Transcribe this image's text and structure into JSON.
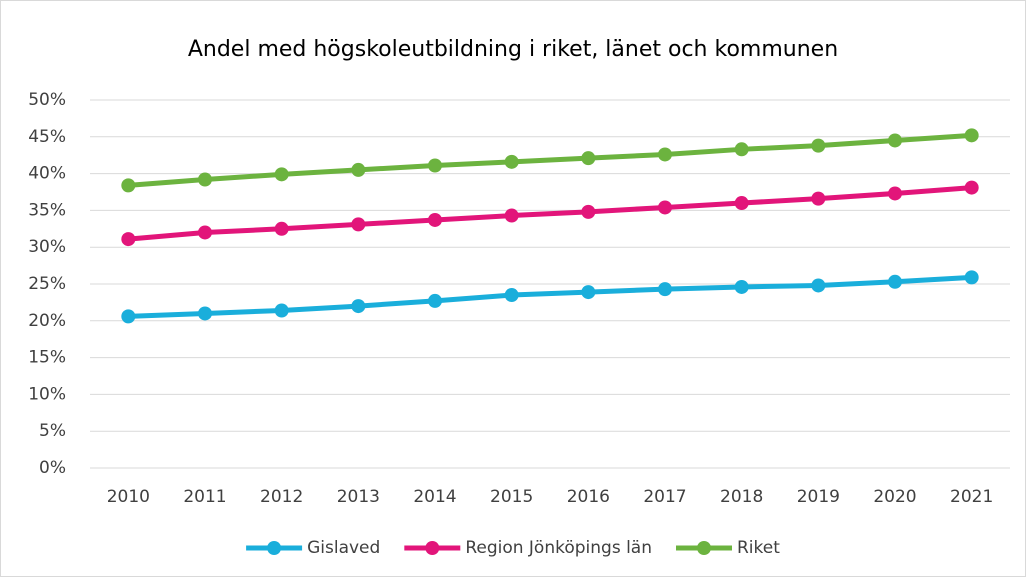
{
  "chart_data": {
    "type": "line",
    "title": "Andel med högskoleutbildning i riket, länet och kommunen",
    "categories": [
      "2010",
      "2011",
      "2012",
      "2013",
      "2014",
      "2015",
      "2016",
      "2017",
      "2018",
      "2019",
      "2020",
      "2021"
    ],
    "series": [
      {
        "name": "Gislaved",
        "color": "#1aaedb",
        "values": [
          20.6,
          21.0,
          21.4,
          22.0,
          22.7,
          23.5,
          23.9,
          24.3,
          24.6,
          24.8,
          25.3,
          25.9
        ]
      },
      {
        "name": "Region Jönköpings län",
        "color": "#e2157a",
        "values": [
          31.1,
          32.0,
          32.5,
          33.1,
          33.7,
          34.3,
          34.8,
          35.4,
          36.0,
          36.6,
          37.3,
          38.1
        ]
      },
      {
        "name": "Riket",
        "color": "#6cb33f",
        "values": [
          38.4,
          39.2,
          39.9,
          40.5,
          41.1,
          41.6,
          42.1,
          42.6,
          43.3,
          43.8,
          44.5,
          45.2
        ]
      }
    ],
    "ylim": [
      0,
      50
    ],
    "yticks": [
      {
        "value": 0,
        "label": "0%"
      },
      {
        "value": 5,
        "label": "5%"
      },
      {
        "value": 10,
        "label": "10%"
      },
      {
        "value": 15,
        "label": "15%"
      },
      {
        "value": 20,
        "label": "20%"
      },
      {
        "value": 25,
        "label": "25%"
      },
      {
        "value": 30,
        "label": "30%"
      },
      {
        "value": 35,
        "label": "35%"
      },
      {
        "value": 40,
        "label": "40%"
      },
      {
        "value": 45,
        "label": "45%"
      },
      {
        "value": 50,
        "label": "50%"
      }
    ],
    "grid": true,
    "legend": "bottom"
  }
}
